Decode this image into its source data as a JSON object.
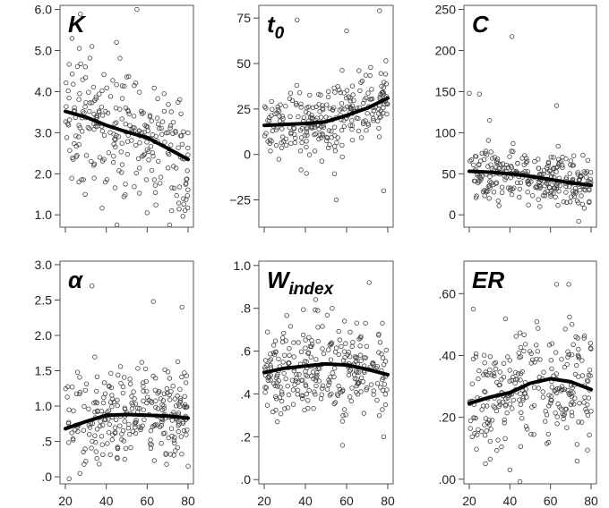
{
  "chart_data": [
    {
      "type": "scatter",
      "title": "K",
      "title_sub": "",
      "xlim": [
        20,
        80
      ],
      "x_ticks": [
        20,
        40,
        60,
        80
      ],
      "x_tick_labels": [
        "",
        "",
        "",
        ""
      ],
      "ylim": [
        0.7,
        6.1
      ],
      "y_ticks": [
        1.0,
        2.0,
        3.0,
        4.0,
        5.0,
        6.0
      ],
      "y_tick_labels": [
        "1.0",
        "2.0",
        "3.0",
        "4.0",
        "5.0",
        "6.0"
      ],
      "trend": [
        [
          20,
          3.52
        ],
        [
          30,
          3.38
        ],
        [
          40,
          3.18
        ],
        [
          50,
          3.02
        ],
        [
          60,
          2.88
        ],
        [
          70,
          2.62
        ],
        [
          80,
          2.35
        ]
      ],
      "scatter": {
        "n": 260,
        "spread": 0.75,
        "outliers": [
          [
            55,
            6.0
          ],
          [
            45,
            5.2
          ],
          [
            33,
            5.1
          ],
          [
            60,
            1.05
          ],
          [
            72,
            1.1
          ]
        ]
      }
    },
    {
      "type": "scatter",
      "title": "t",
      "title_sub": "0",
      "xlim": [
        20,
        80
      ],
      "x_ticks": [
        20,
        40,
        60,
        80
      ],
      "x_tick_labels": [
        "",
        "",
        "",
        ""
      ],
      "ylim": [
        -40,
        82
      ],
      "y_ticks": [
        -25,
        0,
        25,
        50,
        75
      ],
      "y_tick_labels": [
        "−25",
        "0",
        "25",
        "50",
        "75"
      ],
      "trend": [
        [
          20,
          16
        ],
        [
          30,
          16.5
        ],
        [
          40,
          17
        ],
        [
          50,
          18
        ],
        [
          60,
          21.5
        ],
        [
          70,
          25.5
        ],
        [
          80,
          31
        ]
      ],
      "scatter": {
        "n": 260,
        "spread": 10,
        "outliers": [
          [
            76,
            79
          ],
          [
            36,
            74
          ],
          [
            60,
            68
          ],
          [
            55,
            -25
          ],
          [
            78,
            -20
          ]
        ]
      }
    },
    {
      "type": "scatter",
      "title": "C",
      "title_sub": "",
      "xlim": [
        20,
        80
      ],
      "x_ticks": [
        20,
        40,
        60,
        80
      ],
      "x_tick_labels": [
        "",
        "",
        "",
        ""
      ],
      "ylim": [
        -15,
        255
      ],
      "y_ticks": [
        0,
        50,
        100,
        150,
        200,
        250
      ],
      "y_tick_labels": [
        "0",
        "50",
        "100",
        "150",
        "200",
        "250"
      ],
      "trend": [
        [
          20,
          53
        ],
        [
          30,
          52
        ],
        [
          40,
          50
        ],
        [
          50,
          47
        ],
        [
          60,
          43
        ],
        [
          70,
          39
        ],
        [
          80,
          36
        ]
      ],
      "scatter": {
        "n": 280,
        "spread": 16,
        "outliers": [
          [
            41,
            217
          ],
          [
            25,
            147
          ],
          [
            20,
            148
          ],
          [
            63,
            133
          ],
          [
            30,
            115
          ]
        ]
      }
    },
    {
      "type": "scatter",
      "title": "α",
      "title_sub": "",
      "xlim": [
        20,
        80
      ],
      "x_ticks": [
        20,
        40,
        60,
        80
      ],
      "x_tick_labels": [
        "20",
        "40",
        "60",
        "80"
      ],
      "ylim": [
        -0.1,
        3.05
      ],
      "y_ticks": [
        0,
        0.5,
        1.0,
        1.5,
        2.0,
        2.5,
        3.0
      ],
      "y_tick_labels": [
        ".0",
        ".5",
        "1.0",
        "1.5",
        "2.0",
        "2.5",
        "3.0"
      ],
      "trend": [
        [
          20,
          0.68
        ],
        [
          30,
          0.78
        ],
        [
          40,
          0.87
        ],
        [
          50,
          0.88
        ],
        [
          60,
          0.87
        ],
        [
          70,
          0.86
        ],
        [
          80,
          0.83
        ]
      ],
      "scatter": {
        "n": 270,
        "spread": 0.33,
        "outliers": [
          [
            33,
            2.7
          ],
          [
            63,
            2.48
          ],
          [
            77,
            2.4
          ],
          [
            80,
            0.15
          ],
          [
            30,
            0.22
          ]
        ]
      }
    },
    {
      "type": "scatter",
      "title": "W",
      "title_sub": "index",
      "xlim": [
        20,
        80
      ],
      "x_ticks": [
        20,
        40,
        60,
        80
      ],
      "x_tick_labels": [
        "20",
        "40",
        "60",
        "80"
      ],
      "ylim": [
        -0.02,
        1.02
      ],
      "y_ticks": [
        0,
        0.2,
        0.4,
        0.6,
        0.8,
        1.0
      ],
      "y_tick_labels": [
        ".0",
        ".2",
        ".4",
        ".6",
        ".8",
        "1.0"
      ],
      "trend": [
        [
          20,
          0.5
        ],
        [
          30,
          0.52
        ],
        [
          40,
          0.53
        ],
        [
          50,
          0.54
        ],
        [
          60,
          0.535
        ],
        [
          70,
          0.515
        ],
        [
          80,
          0.49
        ]
      ],
      "scatter": {
        "n": 280,
        "spread": 0.11,
        "outliers": [
          [
            71,
            0.92
          ],
          [
            53,
            0.8
          ],
          [
            46,
            0.79
          ],
          [
            58,
            0.16
          ],
          [
            78,
            0.2
          ]
        ]
      }
    },
    {
      "type": "scatter",
      "title": "ER",
      "title_sub": "",
      "xlim": [
        20,
        80
      ],
      "x_ticks": [
        20,
        40,
        60,
        80
      ],
      "x_tick_labels": [
        "20",
        "40",
        "60",
        "80"
      ],
      "ylim": [
        -0.015,
        0.705
      ],
      "y_ticks": [
        0,
        0.2,
        0.4,
        0.6
      ],
      "y_tick_labels": [
        ".00",
        ".20",
        ".40",
        ".60"
      ],
      "trend": [
        [
          20,
          0.245
        ],
        [
          30,
          0.265
        ],
        [
          40,
          0.28
        ],
        [
          50,
          0.31
        ],
        [
          60,
          0.325
        ],
        [
          70,
          0.315
        ],
        [
          80,
          0.29
        ]
      ],
      "scatter": {
        "n": 270,
        "spread": 0.09,
        "outliers": [
          [
            69,
            0.63
          ],
          [
            63,
            0.63
          ],
          [
            22,
            0.55
          ],
          [
            40,
            0.03
          ],
          [
            28,
            0.05
          ]
        ]
      }
    }
  ]
}
